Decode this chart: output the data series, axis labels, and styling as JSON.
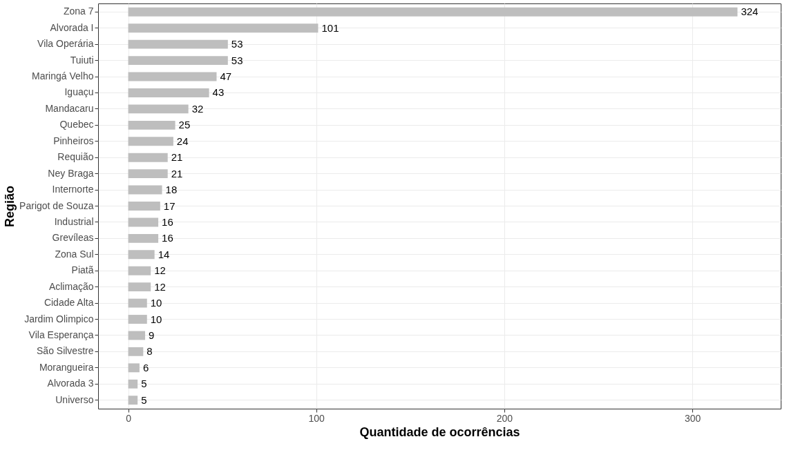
{
  "chart_data": {
    "type": "bar",
    "orientation": "horizontal",
    "xlabel": "Quantidade de ocorrências",
    "ylabel": "Região",
    "categories": [
      "Zona 7",
      "Alvorada I",
      "Vila Operária",
      "Tuiuti",
      "Maringá Velho",
      "Iguaçu",
      "Mandacaru",
      "Quebec",
      "Pinheiros",
      "Requião",
      "Ney Braga",
      "Internorte",
      "Parigot de Souza",
      "Industrial",
      "Grevíleas",
      "Zona Sul",
      "Piatã",
      "Aclimação",
      "Cidade Alta",
      "Jardim Olimpico",
      "Vila Esperança",
      "São Silvestre",
      "Morangueira",
      "Alvorada 3",
      "Universo"
    ],
    "values": [
      324,
      101,
      53,
      53,
      47,
      43,
      32,
      25,
      24,
      21,
      21,
      18,
      17,
      16,
      16,
      14,
      12,
      12,
      10,
      10,
      9,
      8,
      6,
      5,
      5
    ],
    "color": "#bebebe",
    "xlim": [
      -16,
      347
    ],
    "xticks": [
      0,
      100,
      200,
      300
    ],
    "grid": true,
    "data_labels": true
  }
}
